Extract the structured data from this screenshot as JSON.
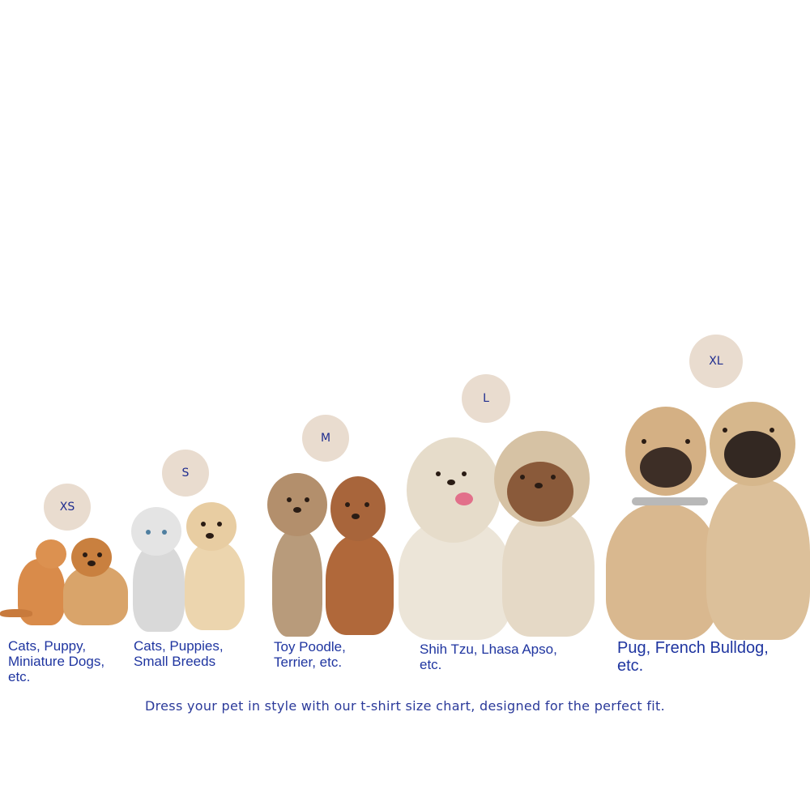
{
  "colors": {
    "badge": "#e9dccf",
    "text": "#1f35a0"
  },
  "sizes": [
    {
      "label": "XS",
      "caption": "Cats, Puppy,\nMiniature Dogs,\netc.",
      "pets": [
        "orange cat",
        "pomeranian"
      ]
    },
    {
      "label": "S",
      "caption": "Cats, Puppies,\nSmall Breeds",
      "pets": [
        "white kitten",
        "golden retriever puppy"
      ]
    },
    {
      "label": "M",
      "caption": "Toy Poodle,\nTerrier, etc.",
      "pets": [
        "toy poodle",
        "yorkshire terrier"
      ]
    },
    {
      "label": "L",
      "caption": "Shih Tzu, Lhasa Apso,\netc.",
      "pets": [
        "shih tzu",
        "lhasa apso"
      ]
    },
    {
      "label": "XL",
      "caption": "Pug, French Bulldog,\netc.",
      "pets": [
        "french bulldog",
        "pug"
      ]
    }
  ],
  "footer": "Dress your pet in style with our t-shirt size chart, designed for the perfect fit."
}
